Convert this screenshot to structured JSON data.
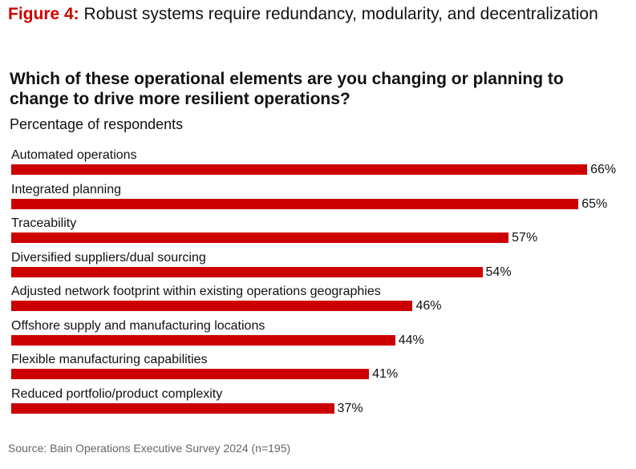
{
  "figure": {
    "label": "Figure 4:",
    "title": "Robust systems require redundancy, modularity, and decentralization"
  },
  "chart_data": {
    "type": "bar",
    "orientation": "horizontal",
    "title": "Which of these operational elements are you changing or planning to change to drive more resilient operations?",
    "subtitle": "Percentage of respondents",
    "categories": [
      "Automated operations",
      "Integrated planning",
      "Traceability",
      "Diversified suppliers/dual sourcing",
      "Adjusted network footprint within existing operations geographies",
      "Offshore supply and manufacturing locations",
      "Flexible manufacturing capabilities",
      "Reduced portfolio/product complexity"
    ],
    "values": [
      66,
      65,
      57,
      54,
      46,
      44,
      41,
      37
    ],
    "value_labels": [
      "66%",
      "65%",
      "57%",
      "54%",
      "46%",
      "44%",
      "41%",
      "37%"
    ],
    "unit": "%",
    "bar_color": "#cc0000",
    "grid": false,
    "legend": "none"
  },
  "source": "Source: Bain Operations Executive Survey 2024 (n=195)"
}
